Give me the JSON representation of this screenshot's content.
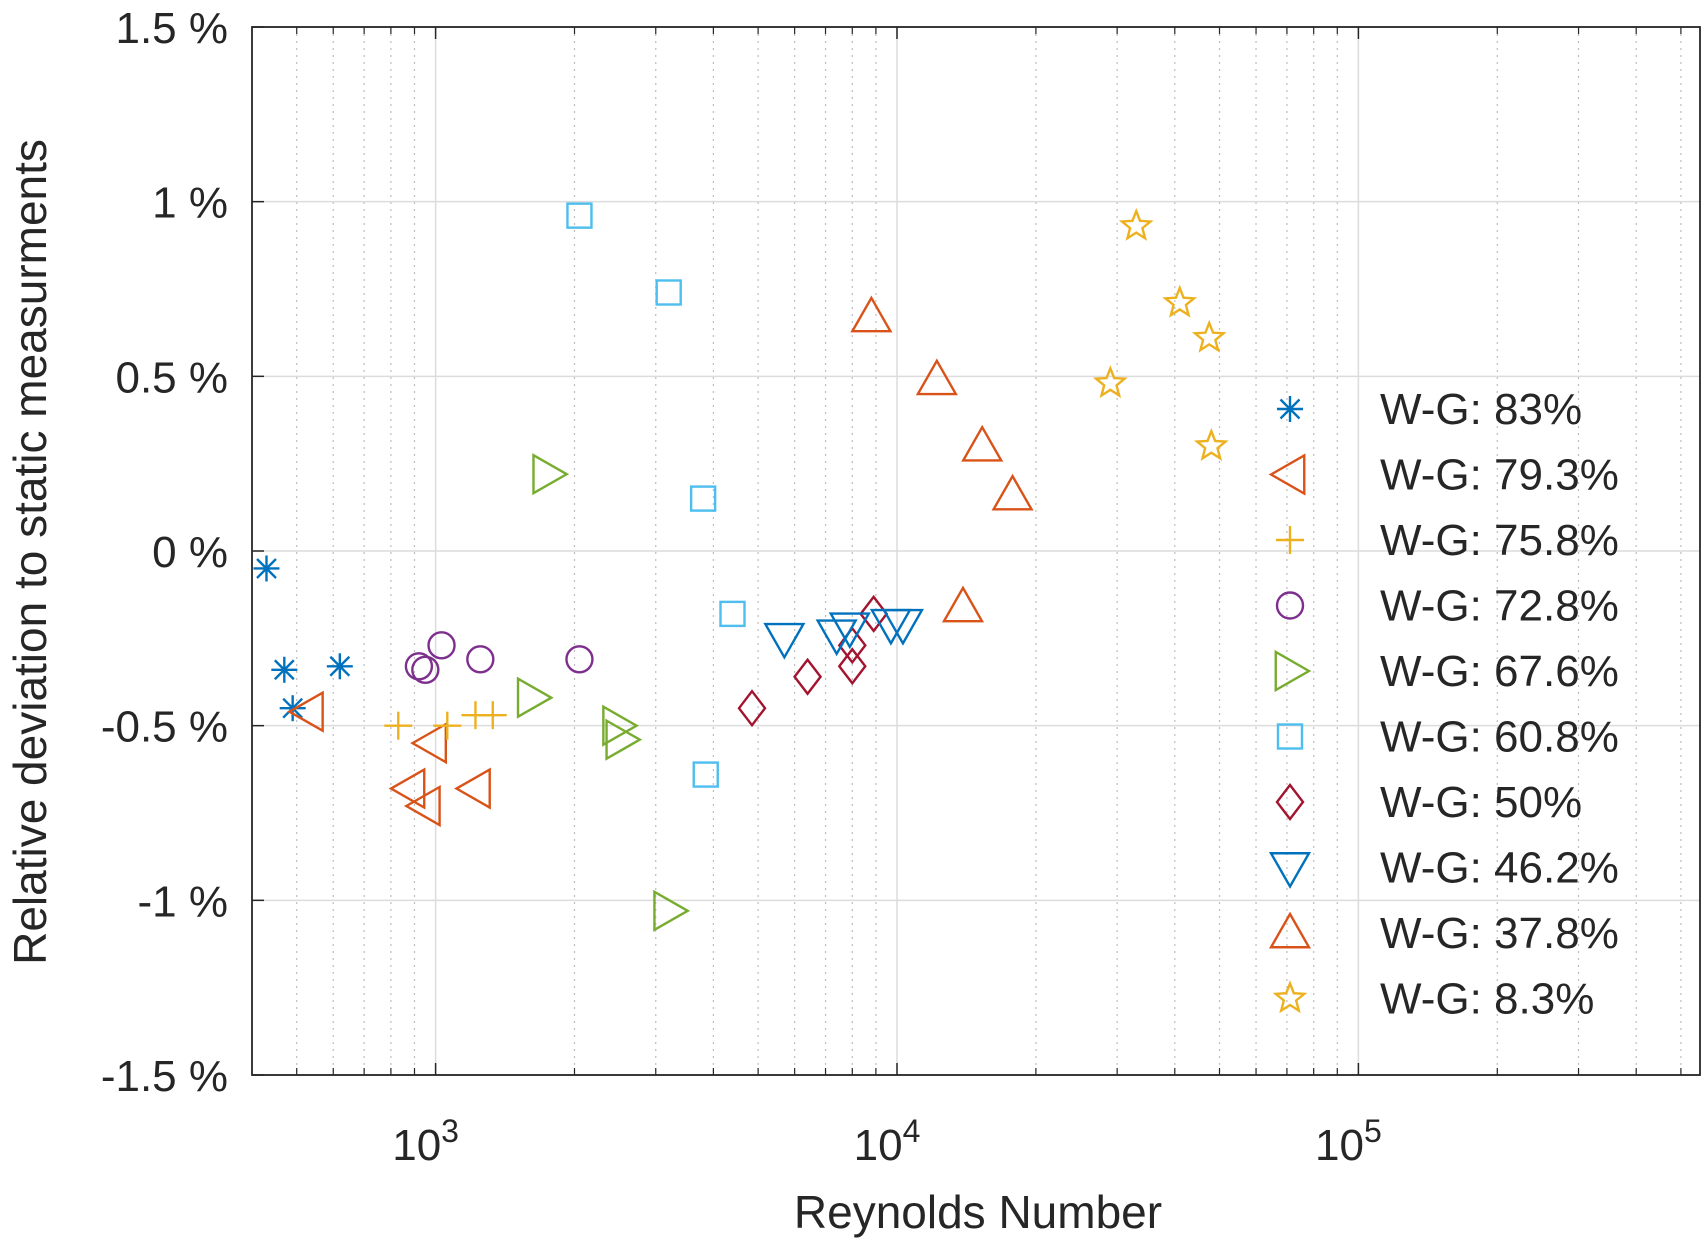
{
  "chart_data": {
    "type": "scatter",
    "title": "",
    "xlabel": "Reynolds Number",
    "ylabel": "Relative deviation to static measurments",
    "xscale": "log",
    "xlim": [
      400,
      550000
    ],
    "ylim": [
      -1.5,
      1.5
    ],
    "grid": true,
    "minor_grid": true,
    "legend_position": "right",
    "x_ticks": [
      {
        "value": 1000,
        "base": "10",
        "exp": "3"
      },
      {
        "value": 10000,
        "base": "10",
        "exp": "4"
      },
      {
        "value": 100000,
        "base": "10",
        "exp": "5"
      }
    ],
    "y_ticks": [
      {
        "value": 1.5,
        "label": "1.5 %"
      },
      {
        "value": 1.0,
        "label": "1 %"
      },
      {
        "value": 0.5,
        "label": "0.5 %"
      },
      {
        "value": 0.0,
        "label": "0 %"
      },
      {
        "value": -0.5,
        "label": "-0.5 %"
      },
      {
        "value": -1.0,
        "label": "-1 %"
      },
      {
        "value": -1.5,
        "label": "-1.5 %"
      }
    ],
    "series": [
      {
        "name": "W-G: 83%",
        "marker": "asterisk",
        "color": "#0072bd",
        "x": [
          430,
          470,
          620,
          490
        ],
        "y": [
          -0.05,
          -0.34,
          -0.33,
          -0.45
        ]
      },
      {
        "name": "W-G: 79.3%",
        "marker": "triangle-left",
        "color": "#d95319",
        "x": [
          530,
          980,
          880,
          950,
          1220
        ],
        "y": [
          -0.46,
          -0.55,
          -0.68,
          -0.73,
          -0.68
        ]
      },
      {
        "name": "W-G: 75.8%",
        "marker": "plus",
        "color": "#edb120",
        "x": [
          830,
          1060,
          1220,
          1330
        ],
        "y": [
          -0.5,
          -0.5,
          -0.47,
          -0.47
        ]
      },
      {
        "name": "W-G: 72.8%",
        "marker": "circle",
        "color": "#7e2f8e",
        "x": [
          920,
          950,
          1030,
          1250,
          2050
        ],
        "y": [
          -0.33,
          -0.34,
          -0.27,
          -0.31,
          -0.31
        ]
      },
      {
        "name": "W-G: 67.6%",
        "marker": "triangle-right",
        "color": "#77ac30",
        "x": [
          1750,
          1620,
          2480,
          2520,
          3200
        ],
        "y": [
          0.22,
          -0.42,
          -0.5,
          -0.54,
          -1.03
        ]
      },
      {
        "name": "W-G: 60.8%",
        "marker": "square",
        "color": "#4dbeee",
        "x": [
          2050,
          3200,
          3800,
          4400,
          3850
        ],
        "y": [
          0.96,
          0.74,
          0.15,
          -0.18,
          -0.64
        ]
      },
      {
        "name": "W-G: 50%",
        "marker": "diamond",
        "color": "#a2142f",
        "x": [
          4850,
          6400,
          8000,
          8000,
          8900
        ],
        "y": [
          -0.45,
          -0.36,
          -0.33,
          -0.27,
          -0.18
        ]
      },
      {
        "name": "W-G: 46.2%",
        "marker": "triangle-down",
        "color": "#0072bd",
        "x": [
          5700,
          7400,
          7900,
          9700,
          10300
        ],
        "y": [
          -0.25,
          -0.24,
          -0.22,
          -0.21,
          -0.21
        ]
      },
      {
        "name": "W-G: 37.8%",
        "marker": "triangle-up",
        "color": "#d95319",
        "x": [
          8800,
          12200,
          15300,
          17800,
          13900
        ],
        "y": [
          0.67,
          0.49,
          0.3,
          0.16,
          -0.16
        ]
      },
      {
        "name": "W-G: 8.3%",
        "marker": "star",
        "color": "#edb120",
        "x": [
          33000,
          41000,
          47500,
          29000,
          48000
        ],
        "y": [
          0.93,
          0.71,
          0.61,
          0.48,
          0.3
        ]
      }
    ]
  }
}
